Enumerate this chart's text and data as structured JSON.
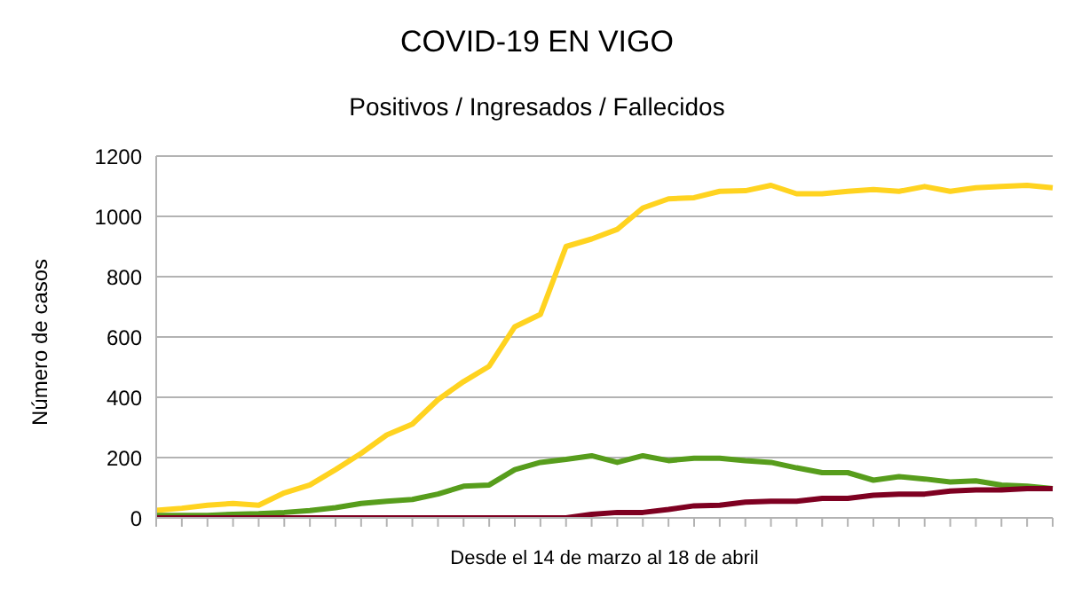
{
  "chart_data": {
    "type": "line",
    "title": "COVID-19 EN VIGO",
    "subtitle": "Positivos / Ingresados / Fallecidos",
    "xlabel": "Desde el 14 de marzo al 18 de abril",
    "ylabel": "Número de casos",
    "categories": [
      null,
      null,
      null,
      null,
      null,
      null,
      null,
      null,
      null,
      null,
      null,
      null,
      null,
      null,
      null,
      null,
      null,
      null,
      null,
      null,
      null,
      null,
      null,
      null,
      null,
      null,
      null,
      null,
      null,
      null,
      null,
      null,
      null,
      null,
      null,
      null
    ],
    "series": [
      {
        "color": "#ffd320",
        "values": [
          25,
          32,
          42,
          48,
          42,
          83,
          109,
          160,
          214,
          275,
          311,
          392,
          452,
          503,
          634,
          675,
          900,
          925,
          957,
          1028,
          1058,
          1062,
          1083,
          1085,
          1103,
          1075,
          1075,
          1083,
          1089,
          1083,
          1099,
          1083,
          1095,
          1099,
          1103,
          1095
        ]
      },
      {
        "color": "#579d1c",
        "values": [
          8,
          8,
          8,
          12,
          14,
          18,
          24,
          34,
          48,
          55,
          61,
          79,
          105,
          109,
          160,
          184,
          194,
          206,
          184,
          206,
          190,
          198,
          198,
          190,
          184,
          166,
          150,
          150,
          125,
          137,
          129,
          119,
          123,
          109,
          105,
          97
        ]
      },
      {
        "color": "#7e0021",
        "values": [
          0,
          0,
          0,
          0,
          0,
          0,
          0,
          0,
          0,
          0,
          0,
          0,
          0,
          0,
          0,
          0,
          0,
          12,
          18,
          18,
          28,
          40,
          42,
          52,
          55,
          55,
          65,
          65,
          75,
          79,
          79,
          89,
          93,
          93,
          97,
          97
        ]
      }
    ],
    "ylim": [
      0,
      1200
    ],
    "yticks": [
      0,
      200,
      400,
      600,
      800,
      1000,
      1200
    ],
    "grid": "y"
  }
}
